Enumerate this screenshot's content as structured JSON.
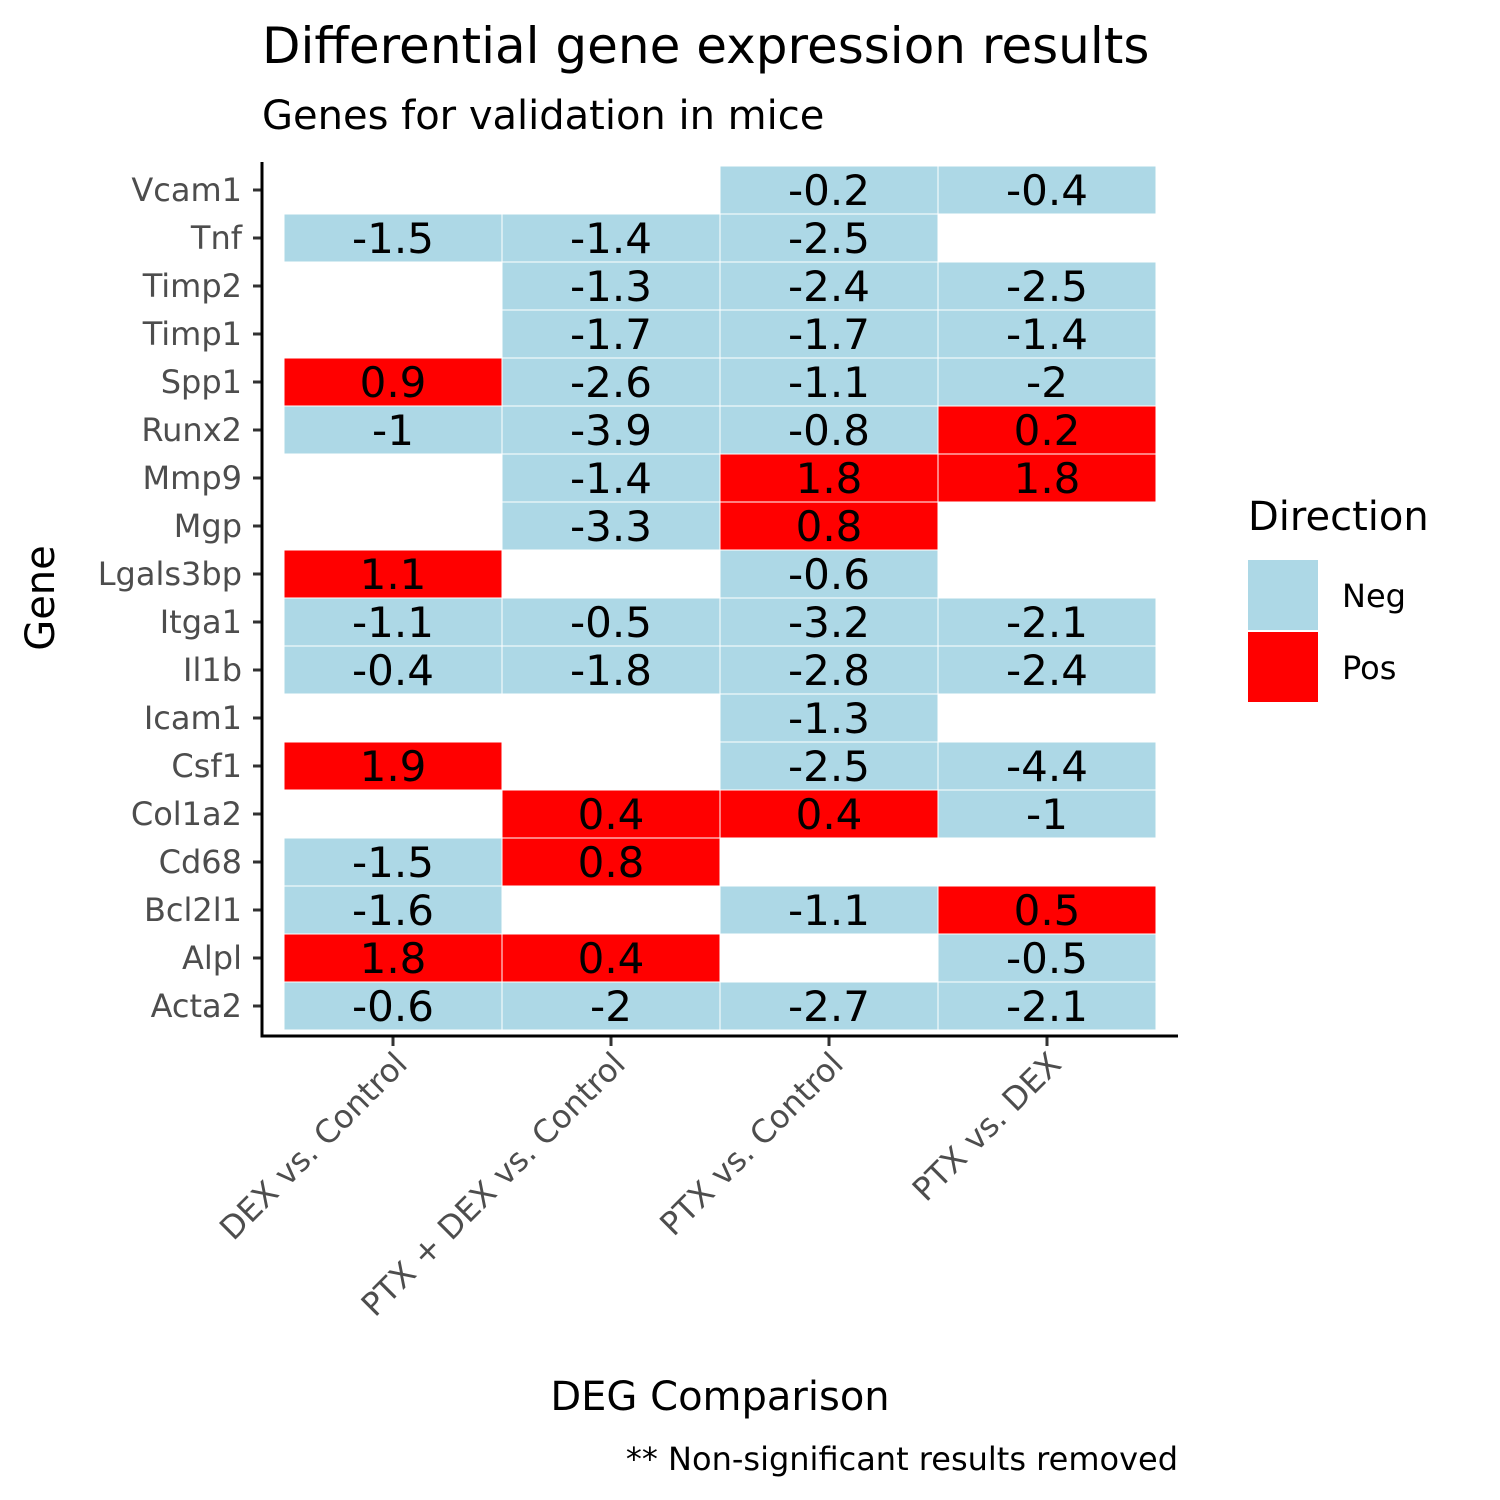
{
  "chart_data": {
    "type": "heatmap",
    "title": "Differential gene expression results",
    "subtitle": "Genes for validation in mice",
    "xlabel": "DEG Comparison",
    "ylabel": "Gene",
    "caption": "** Non-significant results removed",
    "x_categories": [
      "DEX vs. Control",
      "PTX + DEX vs. Control",
      "PTX vs. Control",
      "PTX vs. DEX"
    ],
    "y_categories": [
      "Vcam1",
      "Tnf",
      "Timp2",
      "Timp1",
      "Spp1",
      "Runx2",
      "Mmp9",
      "Mgp",
      "Lgals3bp",
      "Itga1",
      "Il1b",
      "Icam1",
      "Csf1",
      "Col1a2",
      "Cd68",
      "Bcl2l1",
      "Alpl",
      "Acta2"
    ],
    "legend": {
      "title": "Direction",
      "position": "right",
      "entries": [
        {
          "label": "Neg",
          "color": "#add8e6"
        },
        {
          "label": "Pos",
          "color": "#ff0000"
        }
      ]
    },
    "cells": [
      {
        "gene": "Vcam1",
        "comparison": "PTX vs. Control",
        "value": "-0.2",
        "direction": "Neg"
      },
      {
        "gene": "Vcam1",
        "comparison": "PTX vs. DEX",
        "value": "-0.4",
        "direction": "Neg"
      },
      {
        "gene": "Tnf",
        "comparison": "DEX vs. Control",
        "value": "-1.5",
        "direction": "Neg"
      },
      {
        "gene": "Tnf",
        "comparison": "PTX + DEX vs. Control",
        "value": "-1.4",
        "direction": "Neg"
      },
      {
        "gene": "Tnf",
        "comparison": "PTX vs. Control",
        "value": "-2.5",
        "direction": "Neg"
      },
      {
        "gene": "Timp2",
        "comparison": "PTX + DEX vs. Control",
        "value": "-1.3",
        "direction": "Neg"
      },
      {
        "gene": "Timp2",
        "comparison": "PTX vs. Control",
        "value": "-2.4",
        "direction": "Neg"
      },
      {
        "gene": "Timp2",
        "comparison": "PTX vs. DEX",
        "value": "-2.5",
        "direction": "Neg"
      },
      {
        "gene": "Timp1",
        "comparison": "PTX + DEX vs. Control",
        "value": "-1.7",
        "direction": "Neg"
      },
      {
        "gene": "Timp1",
        "comparison": "PTX vs. Control",
        "value": "-1.7",
        "direction": "Neg"
      },
      {
        "gene": "Timp1",
        "comparison": "PTX vs. DEX",
        "value": "-1.4",
        "direction": "Neg"
      },
      {
        "gene": "Spp1",
        "comparison": "DEX vs. Control",
        "value": "0.9",
        "direction": "Pos"
      },
      {
        "gene": "Spp1",
        "comparison": "PTX + DEX vs. Control",
        "value": "-2.6",
        "direction": "Neg"
      },
      {
        "gene": "Spp1",
        "comparison": "PTX vs. Control",
        "value": "-1.1",
        "direction": "Neg"
      },
      {
        "gene": "Spp1",
        "comparison": "PTX vs. DEX",
        "value": "-2",
        "direction": "Neg"
      },
      {
        "gene": "Runx2",
        "comparison": "DEX vs. Control",
        "value": "-1",
        "direction": "Neg"
      },
      {
        "gene": "Runx2",
        "comparison": "PTX + DEX vs. Control",
        "value": "-3.9",
        "direction": "Neg"
      },
      {
        "gene": "Runx2",
        "comparison": "PTX vs. Control",
        "value": "-0.8",
        "direction": "Neg"
      },
      {
        "gene": "Runx2",
        "comparison": "PTX vs. DEX",
        "value": "0.2",
        "direction": "Pos"
      },
      {
        "gene": "Mmp9",
        "comparison": "PTX + DEX vs. Control",
        "value": "-1.4",
        "direction": "Neg"
      },
      {
        "gene": "Mmp9",
        "comparison": "PTX vs. Control",
        "value": "1.8",
        "direction": "Pos"
      },
      {
        "gene": "Mmp9",
        "comparison": "PTX vs. DEX",
        "value": "1.8",
        "direction": "Pos"
      },
      {
        "gene": "Mgp",
        "comparison": "PTX + DEX vs. Control",
        "value": "-3.3",
        "direction": "Neg"
      },
      {
        "gene": "Mgp",
        "comparison": "PTX vs. Control",
        "value": "0.8",
        "direction": "Pos"
      },
      {
        "gene": "Lgals3bp",
        "comparison": "DEX vs. Control",
        "value": "1.1",
        "direction": "Pos"
      },
      {
        "gene": "Lgals3bp",
        "comparison": "PTX vs. Control",
        "value": "-0.6",
        "direction": "Neg"
      },
      {
        "gene": "Itga1",
        "comparison": "DEX vs. Control",
        "value": "-1.1",
        "direction": "Neg"
      },
      {
        "gene": "Itga1",
        "comparison": "PTX + DEX vs. Control",
        "value": "-0.5",
        "direction": "Neg"
      },
      {
        "gene": "Itga1",
        "comparison": "PTX vs. Control",
        "value": "-3.2",
        "direction": "Neg"
      },
      {
        "gene": "Itga1",
        "comparison": "PTX vs. DEX",
        "value": "-2.1",
        "direction": "Neg"
      },
      {
        "gene": "Il1b",
        "comparison": "DEX vs. Control",
        "value": "-0.4",
        "direction": "Neg"
      },
      {
        "gene": "Il1b",
        "comparison": "PTX + DEX vs. Control",
        "value": "-1.8",
        "direction": "Neg"
      },
      {
        "gene": "Il1b",
        "comparison": "PTX vs. Control",
        "value": "-2.8",
        "direction": "Neg"
      },
      {
        "gene": "Il1b",
        "comparison": "PTX vs. DEX",
        "value": "-2.4",
        "direction": "Neg"
      },
      {
        "gene": "Icam1",
        "comparison": "PTX vs. Control",
        "value": "-1.3",
        "direction": "Neg"
      },
      {
        "gene": "Csf1",
        "comparison": "DEX vs. Control",
        "value": "1.9",
        "direction": "Pos"
      },
      {
        "gene": "Csf1",
        "comparison": "PTX vs. Control",
        "value": "-2.5",
        "direction": "Neg"
      },
      {
        "gene": "Csf1",
        "comparison": "PTX vs. DEX",
        "value": "-4.4",
        "direction": "Neg"
      },
      {
        "gene": "Col1a2",
        "comparison": "PTX + DEX vs. Control",
        "value": "0.4",
        "direction": "Pos"
      },
      {
        "gene": "Col1a2",
        "comparison": "PTX vs. Control",
        "value": "0.4",
        "direction": "Pos"
      },
      {
        "gene": "Col1a2",
        "comparison": "PTX vs. DEX",
        "value": "-1",
        "direction": "Neg"
      },
      {
        "gene": "Cd68",
        "comparison": "DEX vs. Control",
        "value": "-1.5",
        "direction": "Neg"
      },
      {
        "gene": "Cd68",
        "comparison": "PTX + DEX vs. Control",
        "value": "0.8",
        "direction": "Pos"
      },
      {
        "gene": "Bcl2l1",
        "comparison": "DEX vs. Control",
        "value": "-1.6",
        "direction": "Neg"
      },
      {
        "gene": "Bcl2l1",
        "comparison": "PTX vs. Control",
        "value": "-1.1",
        "direction": "Neg"
      },
      {
        "gene": "Bcl2l1",
        "comparison": "PTX vs. DEX",
        "value": "0.5",
        "direction": "Pos"
      },
      {
        "gene": "Alpl",
        "comparison": "DEX vs. Control",
        "value": "1.8",
        "direction": "Pos"
      },
      {
        "gene": "Alpl",
        "comparison": "PTX + DEX vs. Control",
        "value": "0.4",
        "direction": "Pos"
      },
      {
        "gene": "Alpl",
        "comparison": "PTX vs. DEX",
        "value": "-0.5",
        "direction": "Neg"
      },
      {
        "gene": "Acta2",
        "comparison": "DEX vs. Control",
        "value": "-0.6",
        "direction": "Neg"
      },
      {
        "gene": "Acta2",
        "comparison": "PTX + DEX vs. Control",
        "value": "-2",
        "direction": "Neg"
      },
      {
        "gene": "Acta2",
        "comparison": "PTX vs. Control",
        "value": "-2.7",
        "direction": "Neg"
      },
      {
        "gene": "Acta2",
        "comparison": "PTX vs. DEX",
        "value": "-2.1",
        "direction": "Neg"
      }
    ]
  }
}
